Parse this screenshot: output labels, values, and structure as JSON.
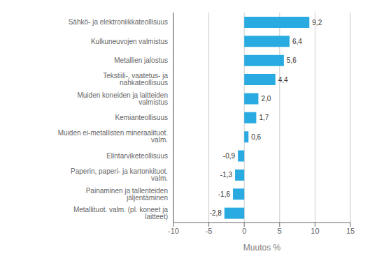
{
  "chart_data": {
    "type": "bar",
    "orientation": "horizontal",
    "categories": [
      "Metallituot. valm. (pl. koneet ja laitteet)",
      "Painaminen ja tallenteiden jäljentäminen",
      "Paperin, paperi- ja kartonkituot. valm.",
      "Elintarviketeollisuus",
      "Muiden ei-metallisten mineraalituot. valm.",
      "Kemianteollisuus",
      "Muiden koneiden ja laitteiden valmistus",
      "Tekstiili-, vaatetus- ja nahkateollisuus",
      "Metallien jalostus",
      "Kulkuneuvojen valmistus",
      "Sähkö- ja elektroniikkateollisuus"
    ],
    "values": [
      -2.8,
      -1.6,
      -1.3,
      -0.9,
      0.6,
      1.7,
      2.0,
      4.4,
      5.6,
      6.4,
      9.2
    ],
    "value_labels": [
      "-2,8",
      "-1,6",
      "-1,3",
      "-0,9",
      "0,6",
      "1,7",
      "2,0",
      "4,4",
      "5,6",
      "6,4",
      "9,2"
    ],
    "data_labels": true,
    "color": "#29abe2",
    "xlabel": "Muutos %",
    "xlim": [
      -10,
      15
    ],
    "xticks": [
      -10,
      -5,
      0,
      5,
      10,
      15
    ],
    "grid": true
  }
}
